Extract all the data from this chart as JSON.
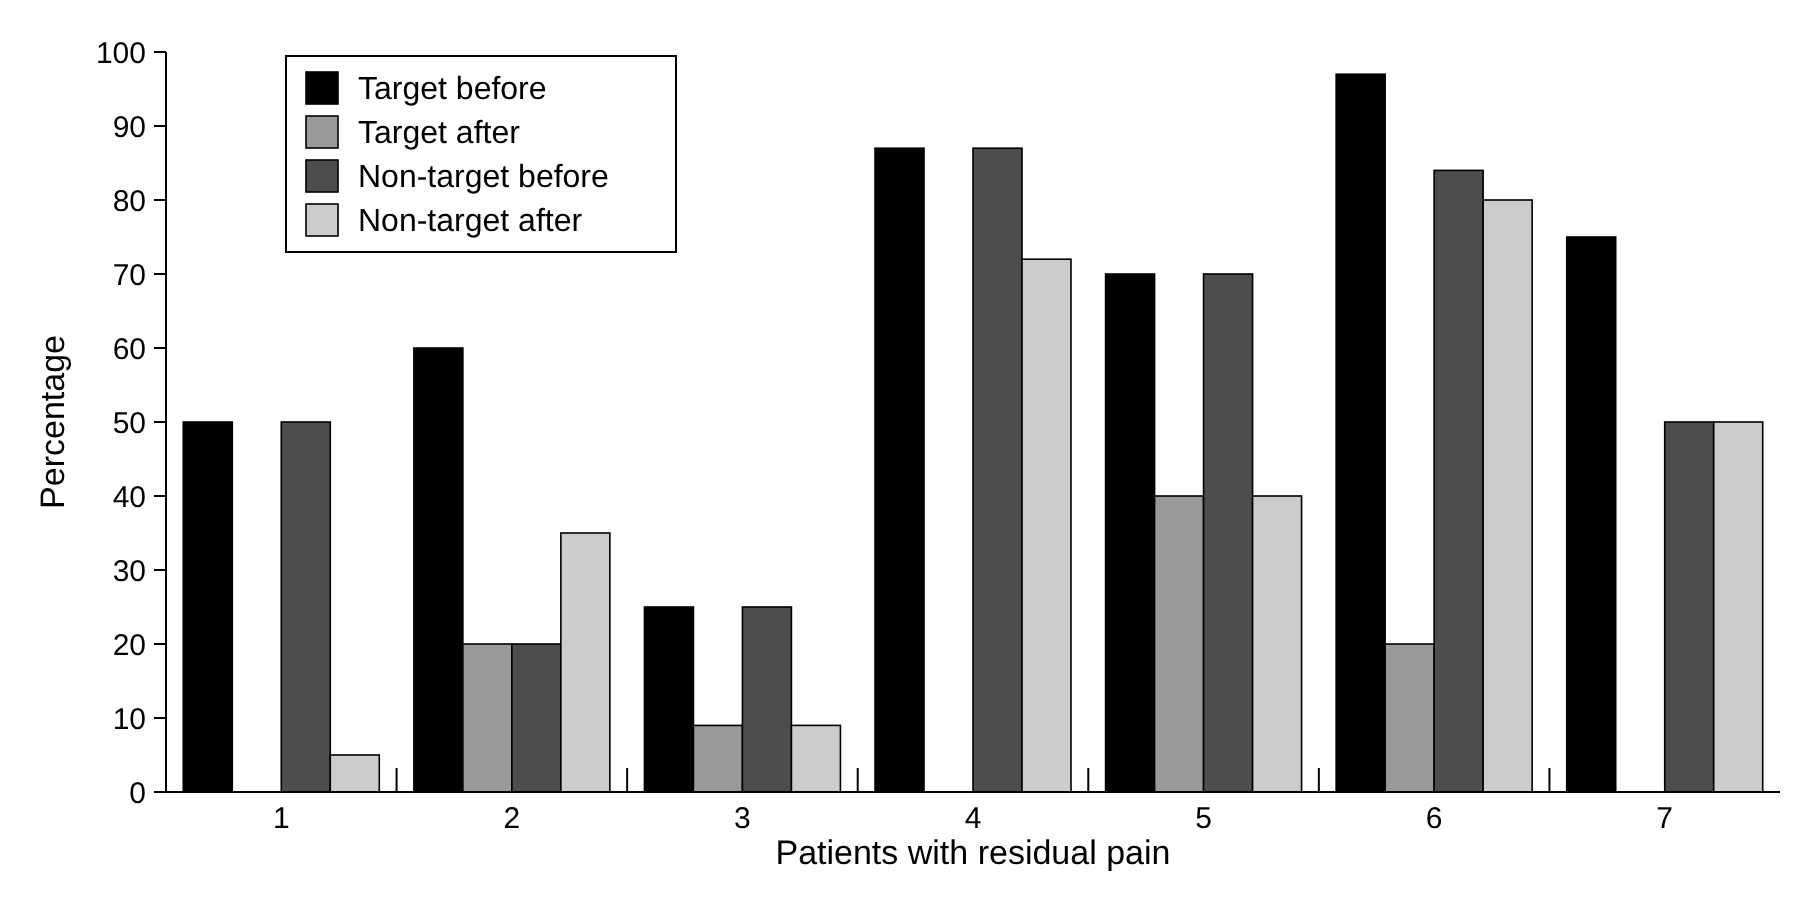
{
  "chart_data": {
    "type": "bar",
    "xlabel": "Patients with residual pain",
    "ylabel": "Percentage",
    "categories": [
      "1",
      "2",
      "3",
      "4",
      "5",
      "6",
      "7"
    ],
    "series": [
      {
        "name": "Target before",
        "color": "#000000",
        "values": [
          50,
          60,
          25,
          87,
          70,
          97,
          75
        ]
      },
      {
        "name": "Target after",
        "color": "#999999",
        "values": [
          0,
          20,
          9,
          0,
          40,
          20,
          0
        ]
      },
      {
        "name": "Non-target before",
        "color": "#4d4d4d",
        "values": [
          50,
          20,
          25,
          87,
          70,
          84,
          50
        ]
      },
      {
        "name": "Non-target after",
        "color": "#cccccc",
        "values": [
          5,
          35,
          9,
          72,
          40,
          80,
          50
        ]
      }
    ],
    "ylim": [
      0,
      100
    ],
    "yticks": [
      0,
      10,
      20,
      30,
      40,
      50,
      60,
      70,
      80,
      90,
      100
    ],
    "grid": false,
    "legend": "top left"
  }
}
